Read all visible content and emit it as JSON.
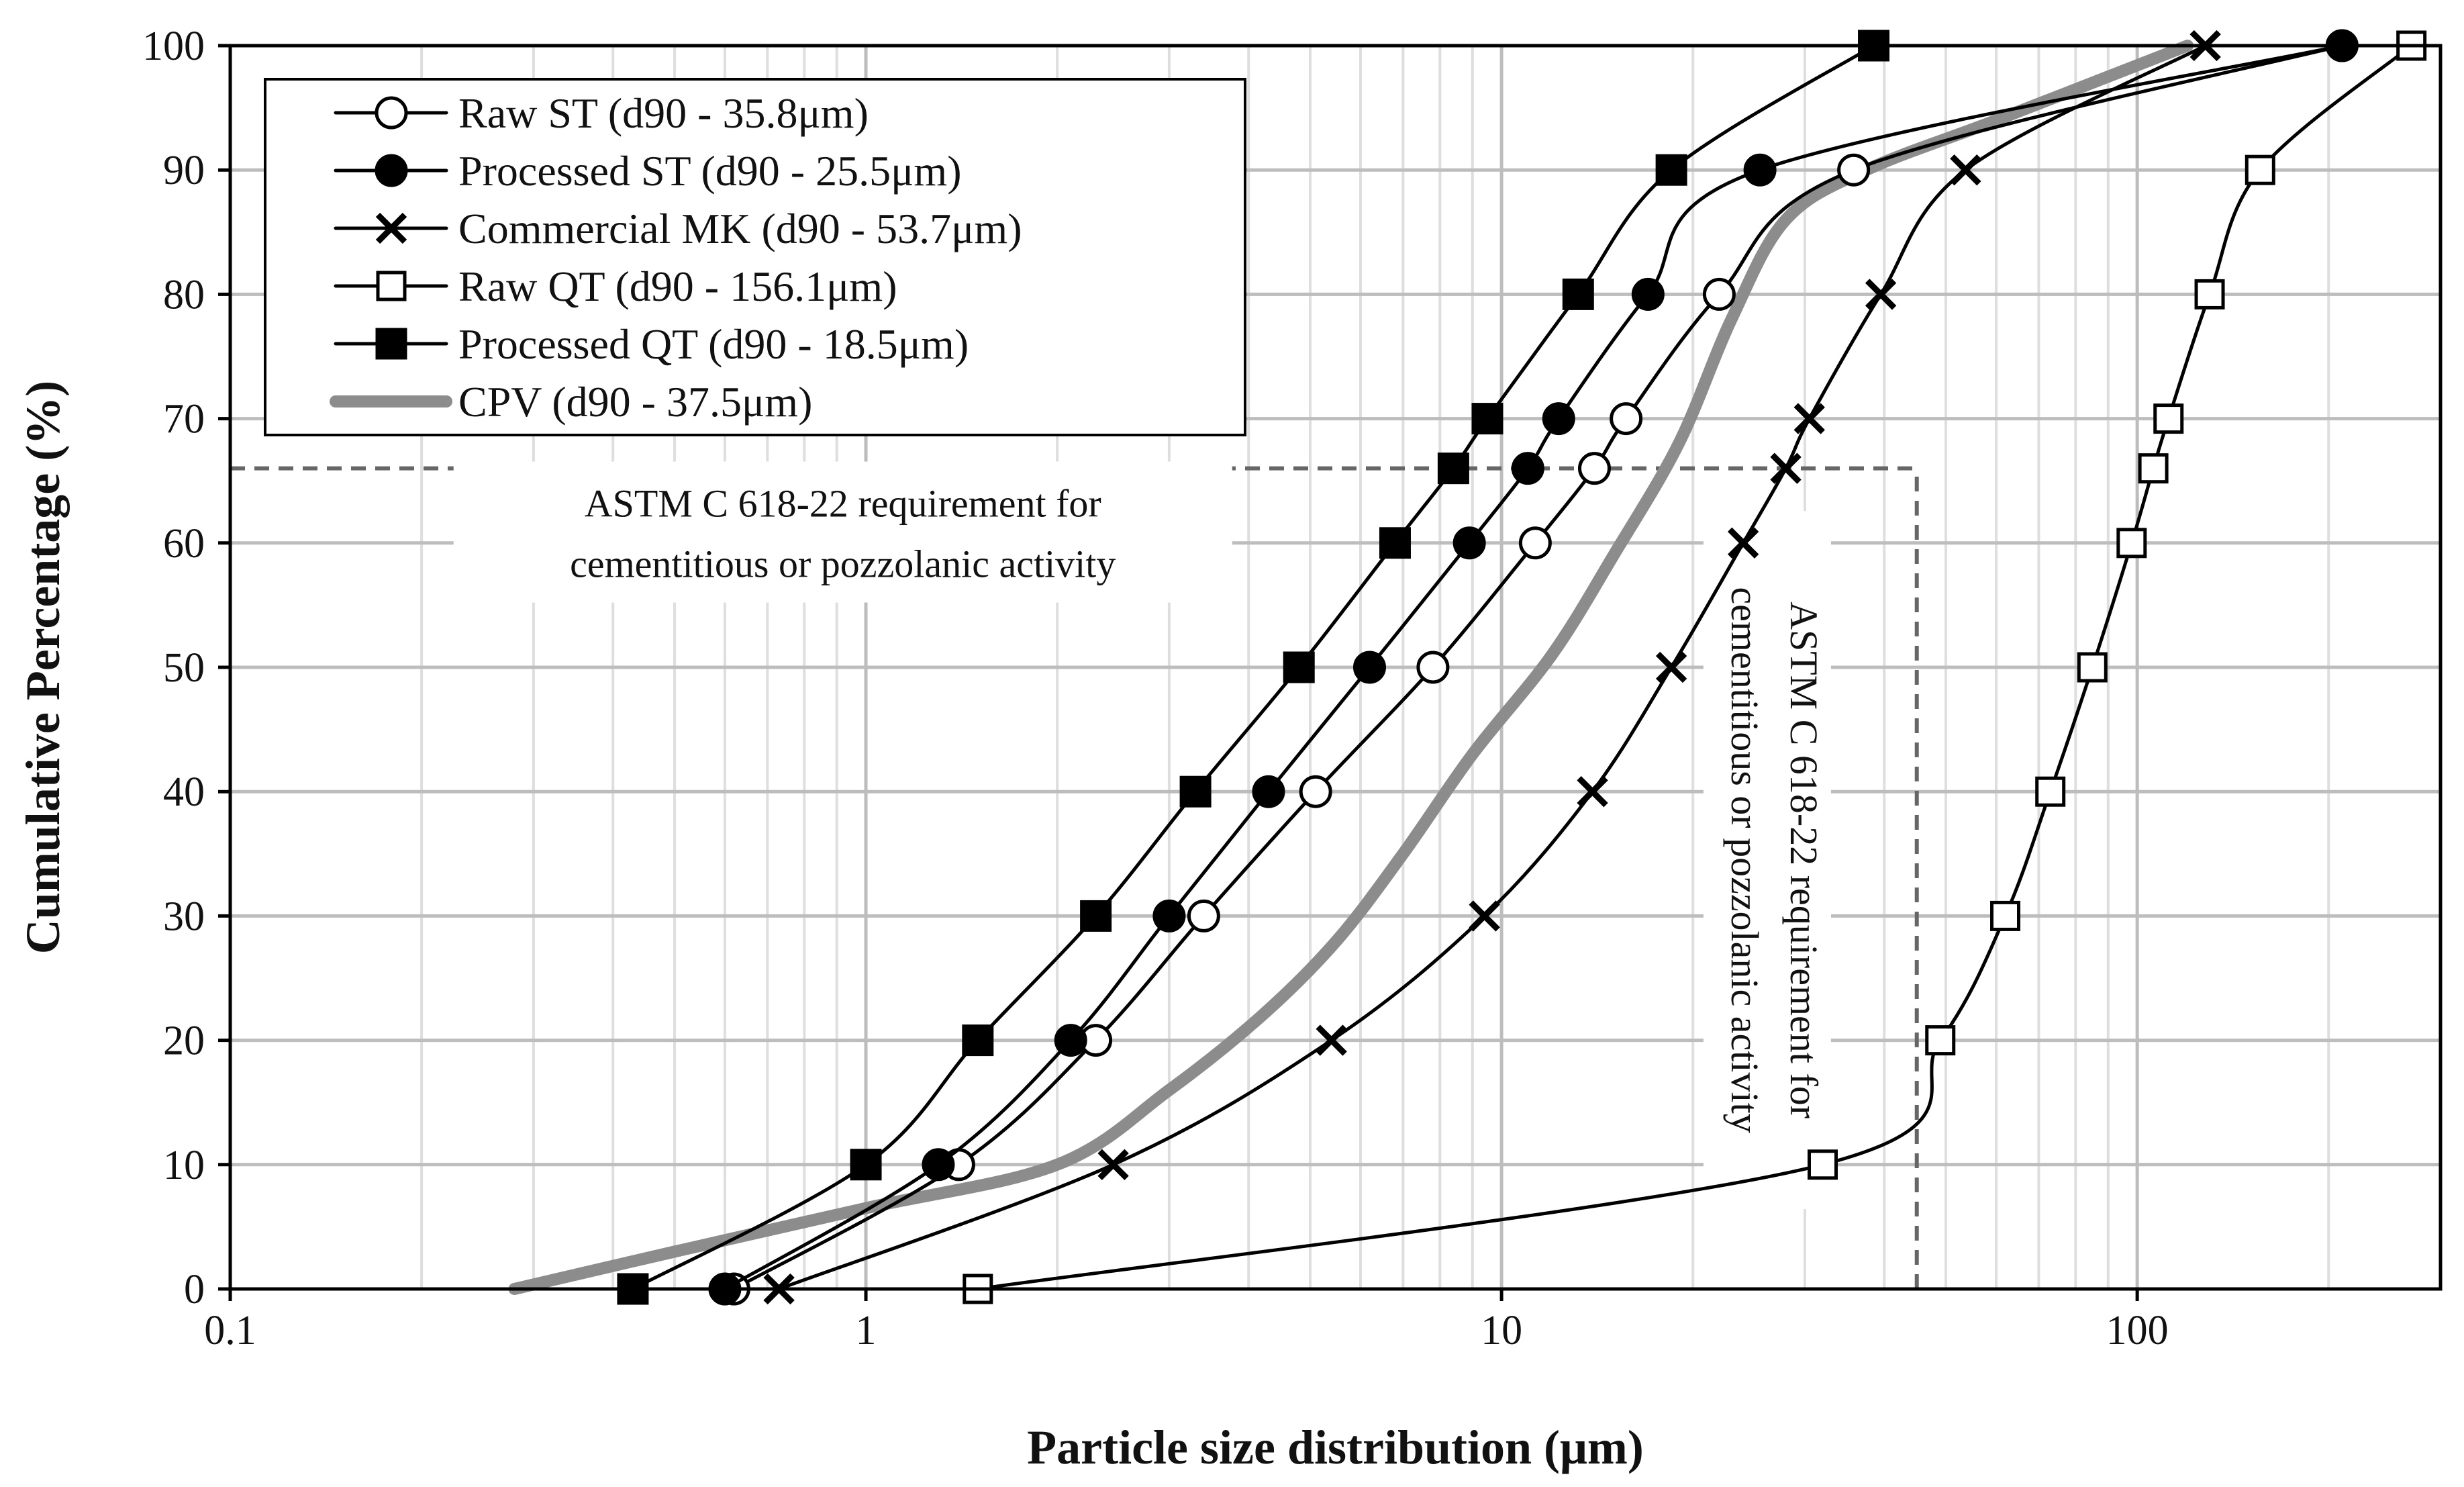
{
  "chart_data": {
    "type": "line",
    "xlabel": "Particle size distribution (μm)",
    "ylabel": "Cumulative Percentage (%)",
    "xscale": "log",
    "xlim": [
      0.1,
      300
    ],
    "ylim": [
      0,
      100
    ],
    "x_ticks": [
      0.1,
      1,
      10,
      100
    ],
    "x_tick_labels": [
      "0.1",
      "1",
      "10",
      "100"
    ],
    "y_ticks": [
      0,
      10,
      20,
      30,
      40,
      50,
      60,
      70,
      80,
      90,
      100
    ],
    "y_tick_labels": [
      "0",
      "10",
      "20",
      "30",
      "40",
      "50",
      "60",
      "70",
      "80",
      "90",
      "100"
    ],
    "grid": true,
    "legend_position": "top-left",
    "series": [
      {
        "name": "Raw ST (d90 - 35.8μm)",
        "marker": "circle-open",
        "color": "#000000",
        "points": [
          [
            0.62,
            0
          ],
          [
            1.4,
            10
          ],
          [
            2.3,
            20
          ],
          [
            3.4,
            30
          ],
          [
            5.1,
            40
          ],
          [
            7.8,
            50
          ],
          [
            11.3,
            60
          ],
          [
            14,
            66
          ],
          [
            15.7,
            70
          ],
          [
            22,
            80
          ],
          [
            35.8,
            90
          ],
          [
            210,
            100
          ]
        ]
      },
      {
        "name": "Processed ST (d90 - 25.5μm)",
        "marker": "circle-filled",
        "color": "#000000",
        "points": [
          [
            0.6,
            0
          ],
          [
            1.3,
            10
          ],
          [
            2.1,
            20
          ],
          [
            3.0,
            30
          ],
          [
            4.3,
            40
          ],
          [
            6.2,
            50
          ],
          [
            8.9,
            60
          ],
          [
            11,
            66
          ],
          [
            12.3,
            70
          ],
          [
            17,
            80
          ],
          [
            25.5,
            90
          ],
          [
            210,
            100
          ]
        ]
      },
      {
        "name": "Commercial MK (d90 - 53.7μm)",
        "marker": "cross",
        "color": "#000000",
        "points": [
          [
            0.73,
            0
          ],
          [
            2.45,
            10
          ],
          [
            5.4,
            20
          ],
          [
            9.4,
            30
          ],
          [
            13.9,
            40
          ],
          [
            18.5,
            50
          ],
          [
            24,
            60
          ],
          [
            28,
            66
          ],
          [
            30.5,
            70
          ],
          [
            39.5,
            80
          ],
          [
            53.7,
            90
          ],
          [
            128,
            100
          ]
        ]
      },
      {
        "name": "Raw QT (d90 - 156.1μm)",
        "marker": "square-open",
        "color": "#000000",
        "points": [
          [
            1.5,
            0
          ],
          [
            32,
            10
          ],
          [
            49,
            20
          ],
          [
            62,
            30
          ],
          [
            73,
            40
          ],
          [
            85,
            50
          ],
          [
            98,
            60
          ],
          [
            106,
            66
          ],
          [
            112,
            70
          ],
          [
            130,
            80
          ],
          [
            156.1,
            90
          ],
          [
            270,
            100
          ]
        ]
      },
      {
        "name": "Processed QT (d90 - 18.5μm)",
        "marker": "square-filled",
        "color": "#000000",
        "points": [
          [
            0.43,
            0
          ],
          [
            1.0,
            10
          ],
          [
            1.5,
            20
          ],
          [
            2.3,
            30
          ],
          [
            3.3,
            40
          ],
          [
            4.8,
            50
          ],
          [
            6.8,
            60
          ],
          [
            8.4,
            66
          ],
          [
            9.5,
            70
          ],
          [
            13.2,
            80
          ],
          [
            18.5,
            90
          ],
          [
            38.5,
            100
          ]
        ]
      },
      {
        "name": "CPV (d90 - 37.5μm)",
        "marker": "none",
        "color": "#8c8c8c",
        "thick": true,
        "points": [
          [
            0.28,
            0
          ],
          [
            0.5,
            3
          ],
          [
            1.0,
            6.5
          ],
          [
            2.0,
            10
          ],
          [
            3.0,
            16
          ],
          [
            4.2,
            22
          ],
          [
            5.5,
            28
          ],
          [
            7.0,
            35
          ],
          [
            9.0,
            43
          ],
          [
            12.0,
            51
          ],
          [
            15.0,
            59
          ],
          [
            19.0,
            68
          ],
          [
            23.0,
            78
          ],
          [
            28.0,
            86
          ],
          [
            37.5,
            90
          ],
          [
            60.0,
            94
          ],
          [
            120.0,
            100
          ]
        ]
      }
    ],
    "reference_lines": [
      {
        "type": "horizontal",
        "y": 66,
        "x_range": [
          0.1,
          45
        ]
      },
      {
        "type": "vertical",
        "x": 45,
        "y_range": [
          0,
          66
        ]
      }
    ],
    "annotations": [
      {
        "text_lines": [
          "ASTM C 618-22 requirement for",
          "cementitious or pozzolanic activity"
        ],
        "orientation": "horizontal",
        "x": 0.92,
        "y": 60.5
      },
      {
        "text_lines": [
          "ASTM C 618-22 requirement for",
          "cementitious or pozzolanic activity"
        ],
        "orientation": "vertical",
        "x": 26.5,
        "y": 34.5
      }
    ]
  }
}
